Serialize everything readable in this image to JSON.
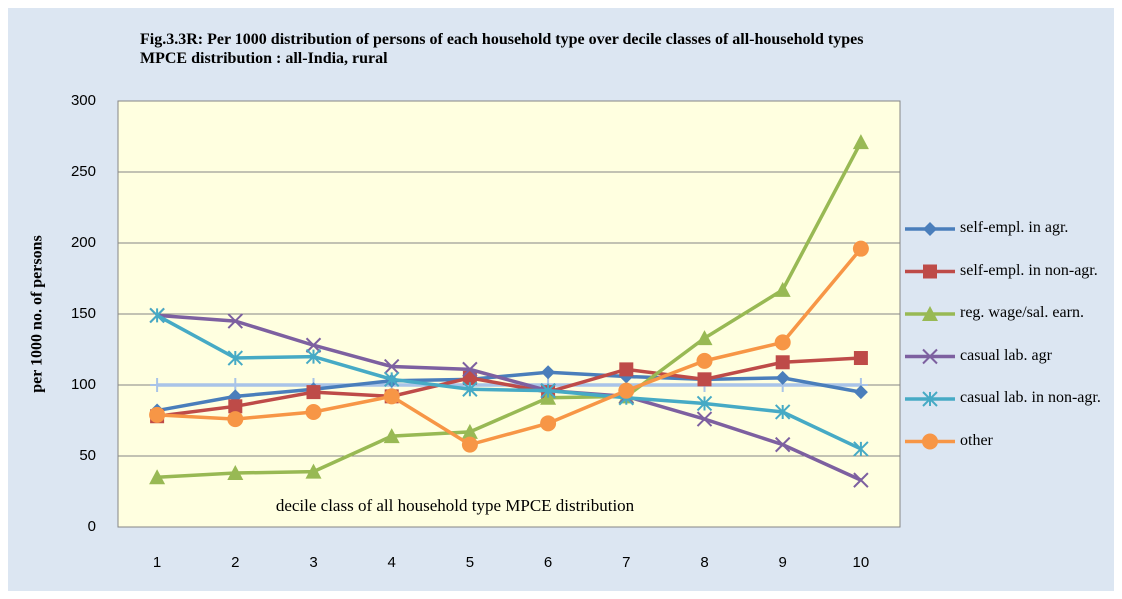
{
  "chart_data": {
    "type": "line",
    "title": "Fig.3.3R: Per 1000 distribution of persons of each household type over decile classes of all-household types MPCE distribution : all-India, rural",
    "y_label": "per 1000 no. of persons",
    "annotation": "decile class of all household type MPCE distribution",
    "categories": [
      "1",
      "2",
      "3",
      "4",
      "5",
      "6",
      "7",
      "8",
      "9",
      "10"
    ],
    "ylim": [
      0,
      300
    ],
    "yticks": [
      0,
      50,
      100,
      150,
      200,
      250,
      300
    ],
    "grid": true,
    "legend": "right",
    "series": [
      {
        "name": "self-empl. in agr.",
        "color": "#4a7ebb",
        "marker": "diamond",
        "values": [
          82,
          92,
          97,
          103,
          104,
          109,
          106,
          104,
          105,
          95
        ]
      },
      {
        "name": "self-empl. in non-agr.",
        "color": "#be4b48",
        "marker": "square",
        "values": [
          78,
          85,
          95,
          92,
          105,
          95,
          111,
          104,
          116,
          119
        ]
      },
      {
        "name": "reg. wage/sal. earn.",
        "color": "#98b954",
        "marker": "triangle",
        "values": [
          35,
          38,
          39,
          64,
          67,
          91,
          92,
          133,
          167,
          271
        ]
      },
      {
        "name": "casual  lab. agr",
        "color": "#7d60a0",
        "marker": "x",
        "values": [
          149,
          145,
          128,
          113,
          111,
          96,
          92,
          76,
          58,
          33
        ]
      },
      {
        "name": "casual  lab. in non-agr.",
        "color": "#46aac5",
        "marker": "star",
        "values": [
          149,
          119,
          120,
          104,
          97,
          96,
          91,
          87,
          81,
          55
        ]
      },
      {
        "name": "other",
        "color": "#f79646",
        "marker": "circle",
        "values": [
          79,
          76,
          81,
          92,
          58,
          73,
          96,
          117,
          130,
          196
        ]
      },
      {
        "color": "#a9c4e8",
        "marker": "plus",
        "values": [
          100,
          100,
          100,
          100,
          100,
          100,
          100,
          100,
          100,
          100
        ]
      }
    ]
  }
}
